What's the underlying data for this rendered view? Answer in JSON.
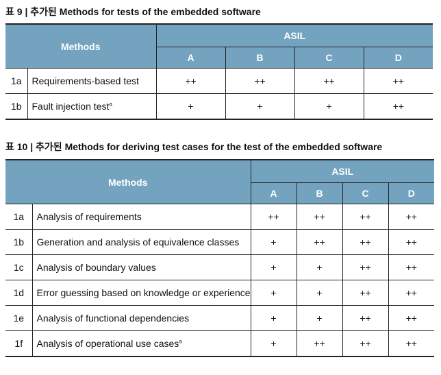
{
  "table9": {
    "caption": "표 9 | 추가된 Methods for tests of the embedded software",
    "methods_header": "Methods",
    "asil_header": "ASIL",
    "levels": [
      "A",
      "B",
      "C",
      "D"
    ],
    "rows": [
      {
        "id": "1a",
        "method": "Requirements-based test",
        "note": "",
        "values": [
          "++",
          "++",
          "++",
          "++"
        ]
      },
      {
        "id": "1b",
        "method": "Fault injection test",
        "note": "a",
        "values": [
          "+",
          "+",
          "+",
          "++"
        ]
      }
    ]
  },
  "table10": {
    "caption": "표 10 | 추가된 Methods for deriving test cases for the test of the embedded software",
    "methods_header": "Methods",
    "asil_header": "ASIL",
    "levels": [
      "A",
      "B",
      "C",
      "D"
    ],
    "rows": [
      {
        "id": "1a",
        "method": "Analysis of requirements",
        "note": "",
        "values": [
          "++",
          "++",
          "++",
          "++"
        ]
      },
      {
        "id": "1b",
        "method": "Generation and analysis of equivalence classes",
        "note": "",
        "values": [
          "+",
          "++",
          "++",
          "++"
        ]
      },
      {
        "id": "1c",
        "method": "Analysis of boundary values",
        "note": "",
        "values": [
          "+",
          "+",
          "++",
          "++"
        ]
      },
      {
        "id": "1d",
        "method": "Error guessing based on knowledge or experience",
        "note": "",
        "values": [
          "+",
          "+",
          "++",
          "++"
        ]
      },
      {
        "id": "1e",
        "method": "Analysis of functional dependencies",
        "note": "",
        "values": [
          "+",
          "+",
          "++",
          "++"
        ]
      },
      {
        "id": "1f",
        "method": "Analysis of operational use cases",
        "note": "a",
        "values": [
          "+",
          "++",
          "++",
          "++"
        ]
      }
    ]
  }
}
